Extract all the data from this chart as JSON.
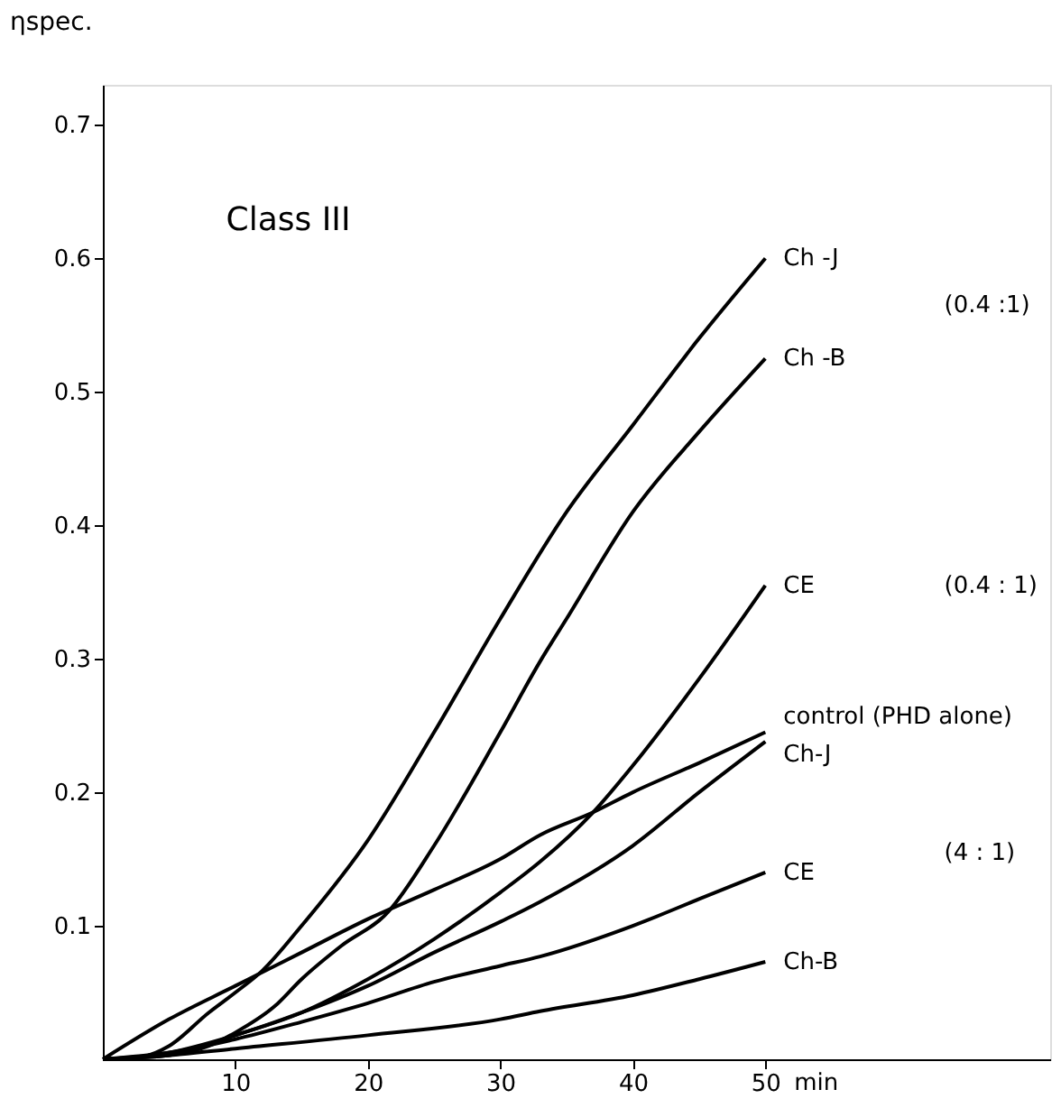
{
  "chart_data": {
    "type": "line",
    "title": "Class III",
    "ylabel": "ηspec.",
    "xlabel": "min",
    "xlim": [
      0,
      71.5
    ],
    "ylim": [
      0,
      0.73
    ],
    "xticks": [
      10,
      20,
      30,
      40,
      50
    ],
    "yticks": [
      0.1,
      0.2,
      0.3,
      0.4,
      0.5,
      0.6,
      0.7
    ],
    "grid": false,
    "legend": false,
    "marker": "none",
    "line_style": "solid",
    "annotations": [
      "(0.4 :1)",
      "(0.4 : 1)",
      "(4 : 1)"
    ],
    "series": [
      {
        "name": "Ch -J",
        "color": "#000000",
        "x": [
          0,
          3,
          5,
          8,
          10,
          12,
          15,
          20,
          25,
          30,
          35,
          40,
          45,
          50
        ],
        "values": [
          0,
          0.002,
          0.01,
          0.035,
          0.05,
          0.066,
          0.1,
          0.164,
          0.245,
          0.33,
          0.41,
          0.475,
          0.54,
          0.6
        ]
      },
      {
        "name": "Ch -B",
        "color": "#000000",
        "x": [
          0,
          5,
          8,
          10,
          13,
          15,
          18,
          21.5,
          25,
          30,
          33,
          35,
          40,
          45,
          50
        ],
        "values": [
          0,
          0.003,
          0.01,
          0.02,
          0.04,
          0.06,
          0.085,
          0.11,
          0.16,
          0.245,
          0.298,
          0.33,
          0.41,
          0.47,
          0.525
        ]
      },
      {
        "name": "CE",
        "color": "#000000",
        "x": [
          0,
          5,
          10,
          15,
          20,
          25,
          30,
          33,
          37,
          40,
          45,
          50
        ],
        "values": [
          0,
          0.003,
          0.018,
          0.035,
          0.06,
          0.09,
          0.125,
          0.148,
          0.185,
          0.22,
          0.285,
          0.355
        ]
      },
      {
        "name": "control (PHD alone)",
        "color": "#000000",
        "x": [
          0,
          5,
          10,
          12,
          15,
          20,
          25,
          30,
          33,
          37,
          40,
          45,
          50
        ],
        "values": [
          0,
          0.03,
          0.055,
          0.065,
          0.08,
          0.105,
          0.127,
          0.15,
          0.168,
          0.185,
          0.2,
          0.222,
          0.245
        ]
      },
      {
        "name": "Ch-J",
        "color": "#000000",
        "x": [
          0,
          5,
          10,
          15,
          20,
          25,
          30,
          33,
          40,
          45,
          50
        ],
        "values": [
          0,
          0.005,
          0.018,
          0.035,
          0.055,
          0.08,
          0.103,
          0.118,
          0.16,
          0.2,
          0.238
        ]
      },
      {
        "name": "CE",
        "color": "#000000",
        "x": [
          0,
          5,
          10,
          15,
          20,
          25,
          30,
          33,
          40,
          45,
          50
        ],
        "values": [
          0,
          0.005,
          0.015,
          0.028,
          0.042,
          0.058,
          0.07,
          0.077,
          0.1,
          0.12,
          0.14
        ]
      },
      {
        "name": "Ch-B",
        "color": "#000000",
        "x": [
          0,
          5,
          10,
          20,
          30,
          33,
          40,
          45,
          50
        ],
        "values": [
          0,
          0.003,
          0.008,
          0.018,
          0.03,
          0.036,
          0.048,
          0.06,
          0.073
        ]
      }
    ]
  }
}
